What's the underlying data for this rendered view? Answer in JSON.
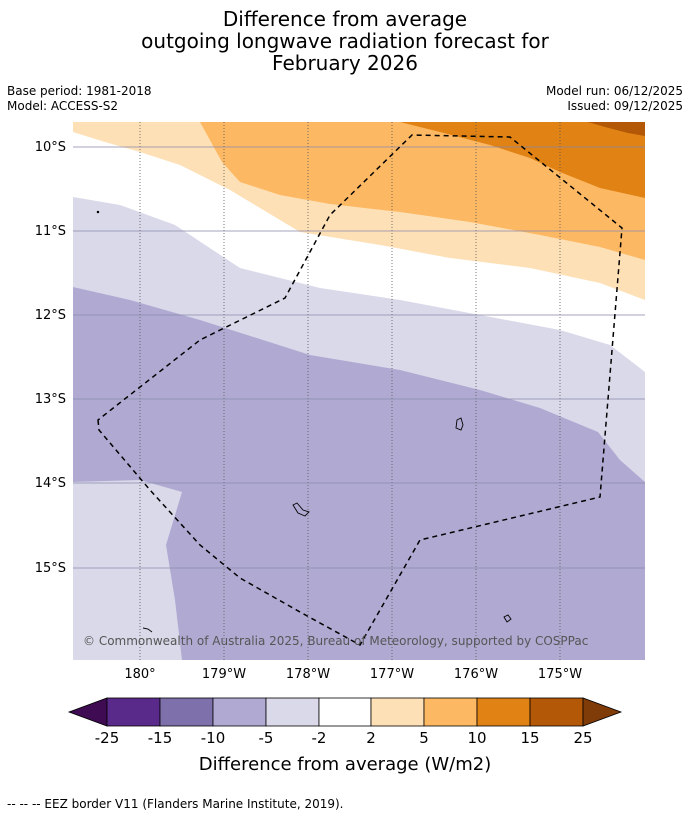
{
  "title": {
    "line1": "Difference from average",
    "line2": "outgoing longwave radiation forecast for",
    "line3": "February 2026"
  },
  "meta": {
    "base_period": "Base period: 1981-2018",
    "model": "Model: ACCESS-S2",
    "model_run": "Model run: 06/12/2025",
    "issued": "Issued: 09/12/2025"
  },
  "map": {
    "lat_labels": [
      "10°S",
      "11°S",
      "12°S",
      "13°S",
      "14°S",
      "15°S"
    ],
    "lon_labels": [
      "180°",
      "179°W",
      "178°W",
      "177°W",
      "176°W",
      "175°W"
    ],
    "copyright": "© Commonwealth of Australia 2025, Bureau of Meteorology, supported by COSPPac"
  },
  "colorbar": {
    "label": "Difference from average (W/m2)",
    "ticks": [
      "-25",
      "-15",
      "-10",
      "-5",
      "-2",
      "2",
      "5",
      "10",
      "15",
      "25"
    ],
    "colors": {
      "below_min": "#3f0b52",
      "c1": "#5a2a8a",
      "c2": "#7e70ab",
      "c3": "#b0aad3",
      "c4": "#d9d9ea",
      "c5": "#ffffff",
      "c6": "#fee0b6",
      "c7": "#fdb863",
      "c8": "#e08214",
      "c9": "#b35806",
      "above_max": "#7f3b08"
    }
  },
  "footer": {
    "eez_note": "--  --  -- EEZ border V11 (Flanders Marine Institute, 2019)."
  }
}
